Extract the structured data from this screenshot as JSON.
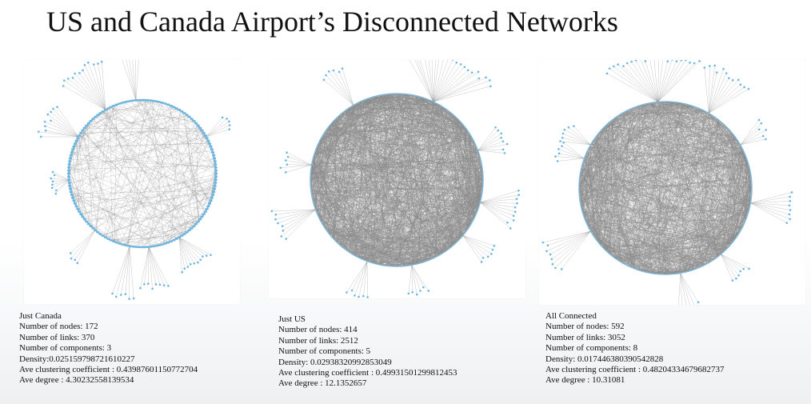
{
  "title": "US and Canada Airport’s Disconnected Networks",
  "colors": {
    "node": "#6fb6df",
    "edge": "#8a8a8a",
    "ring": "#7fb8d8"
  },
  "networks": [
    {
      "name": "Just Canada",
      "nodes_line": "Number of nodes: 172",
      "links_line": "Number of links: 370",
      "components_line": "Number of components: 3",
      "density_line": "Density:0.025159798721610227",
      "clustering_line": "Ave clustering coefficient : 0.43987601150772704",
      "degree_line": "Ave degree : 4.30232558139534"
    },
    {
      "name": "Just US",
      "nodes_line": "Number of nodes: 414",
      "links_line": "Number of links: 2512",
      "components_line": "Number of components: 5",
      "density_line": "Density: 0.02938320992853049",
      "clustering_line": "Ave clustering coefficient :  0.49931501299812453",
      "degree_line": "Ave degree : 12.1352657"
    },
    {
      "name": "All Connected",
      "nodes_line": "Number of nodes: 592",
      "links_line": "Number of links: 3052",
      "components_line": "Number of components: 8",
      "density_line": "Density: 0.017446380390542828",
      "clustering_line": "Ave clustering coefficient : 0.48204334679682737",
      "degree_line": "Ave degree : 10.31081"
    }
  ]
}
